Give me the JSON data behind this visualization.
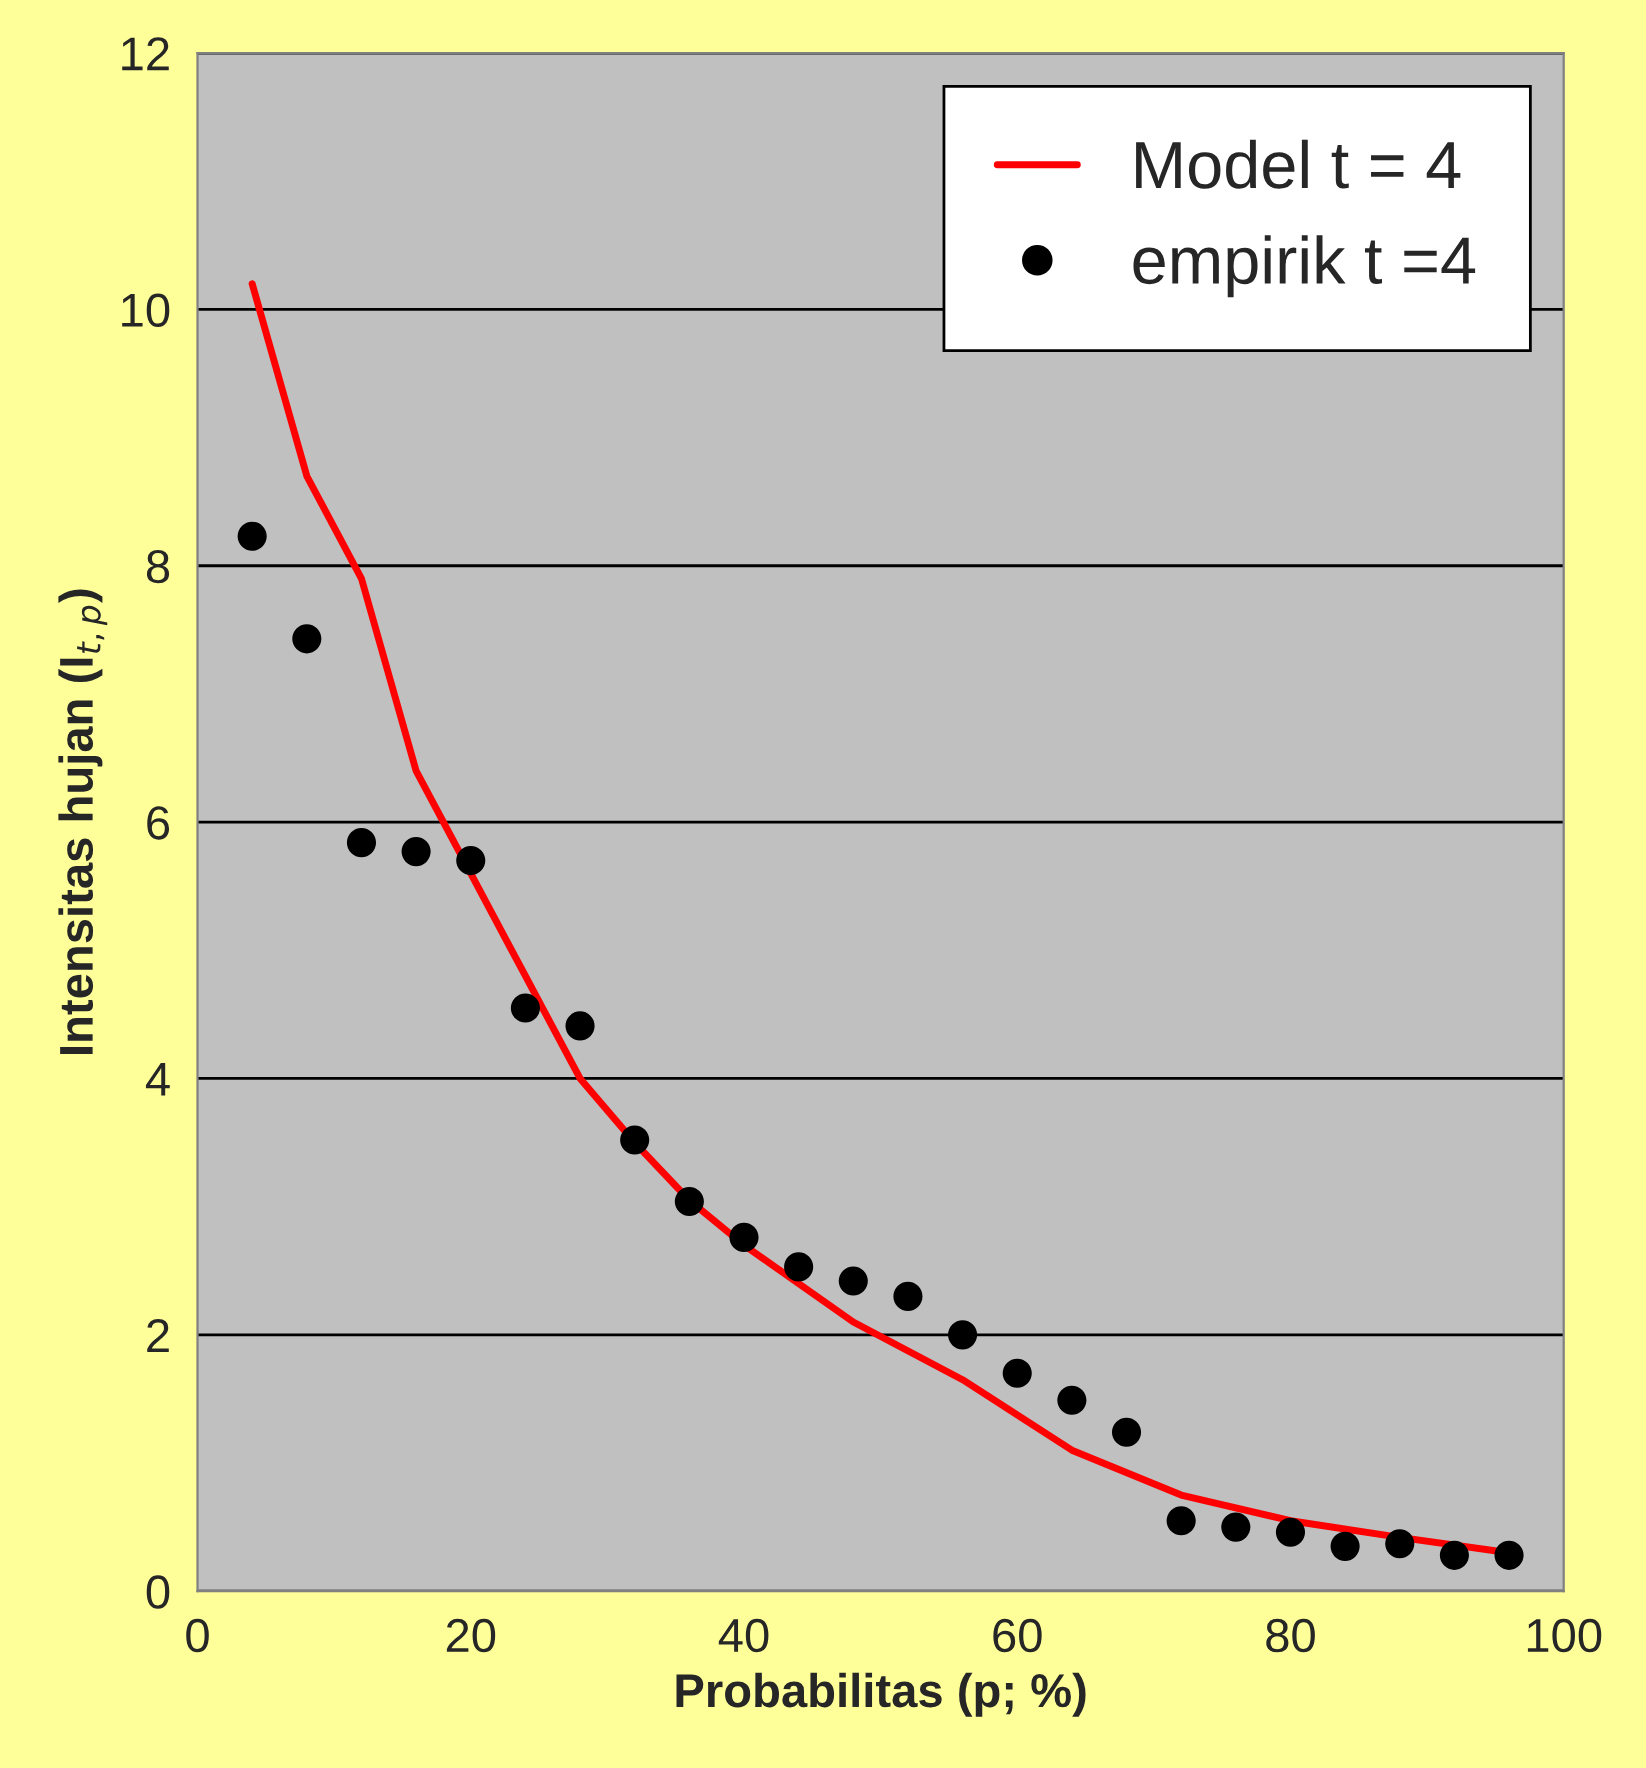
{
  "chart_data": {
    "type": "scatter",
    "xlabel": "Probabilitas (p; %)",
    "ylabel": "Intensitas hujan (I$_{t,p}$)",
    "xlim": [
      0,
      100
    ],
    "xticks": [
      0,
      20,
      40,
      60,
      80,
      100
    ],
    "ylim": [
      0,
      12
    ],
    "yticks": [
      0,
      2,
      4,
      6,
      8,
      10,
      12
    ],
    "grid": "y",
    "legend": "top right",
    "series": [
      {
        "name": "Model t = 4",
        "type": "line",
        "color": "#ff0000",
        "marker": "none",
        "x": [
          4,
          8,
          12,
          16,
          20,
          24,
          28,
          32,
          36,
          40,
          48,
          56,
          64,
          72,
          80,
          88,
          96
        ],
        "values": [
          10.2,
          8.7,
          7.9,
          6.4,
          5.6,
          4.8,
          4.0,
          3.5,
          3.05,
          2.7,
          2.1,
          1.65,
          1.1,
          0.75,
          0.55,
          0.42,
          0.3
        ]
      },
      {
        "name": "empirik t =4",
        "color": "#000000",
        "marker": "circle",
        "x": [
          4,
          8,
          12,
          16,
          20,
          24,
          28,
          32,
          36,
          40,
          44,
          48,
          52,
          56,
          60,
          64,
          68,
          72,
          76,
          80,
          84,
          88,
          92,
          96
        ],
        "values": [
          8.23,
          7.43,
          5.84,
          5.77,
          5.7,
          4.55,
          4.41,
          3.52,
          3.04,
          2.76,
          2.53,
          2.42,
          2.3,
          2.0,
          1.7,
          1.49,
          1.24,
          0.55,
          0.5,
          0.46,
          0.35,
          0.37,
          0.28,
          0.28
        ]
      }
    ]
  }
}
